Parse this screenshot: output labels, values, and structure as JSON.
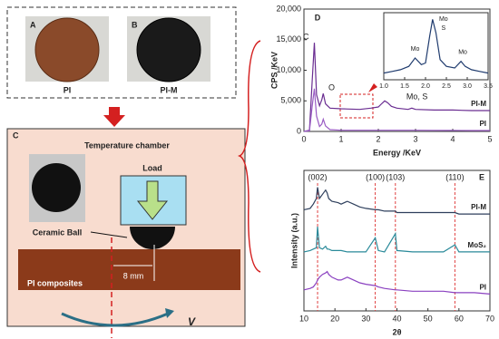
{
  "panels": {
    "a_letter": "A",
    "a_label": "PI",
    "b_letter": "B",
    "b_label": "PI-M",
    "c_letter": "C",
    "chamber": "Temperature chamber",
    "load": "Load",
    "ball": "Ceramic Ball",
    "composite": "PI composites",
    "distance": "8 mm",
    "velocity": "V"
  },
  "chart_data": [
    {
      "type": "line",
      "panel": "D",
      "xlabel": "Energy /KeV",
      "ylabel": "CPS /KeV",
      "xlim": [
        0,
        5
      ],
      "ylim": [
        0,
        20000
      ],
      "xticks": [
        0,
        1,
        2,
        3,
        4,
        5
      ],
      "yticks": [
        0,
        {
          "value": 5000,
          "label": "5,000"
        },
        {
          "value": 10000,
          "label": "10,000"
        },
        {
          "value": 15000,
          "label": "15,000"
        },
        {
          "value": 20000,
          "label": "20,000"
        }
      ],
      "annotations": [
        "C",
        "O",
        "Mo, S"
      ],
      "x": [
        0,
        0.15,
        0.22,
        0.28,
        0.34,
        0.42,
        0.48,
        0.52,
        0.58,
        0.7,
        1.0,
        1.5,
        1.8,
        2.0,
        2.1,
        2.17,
        2.25,
        2.35,
        2.5,
        2.8,
        2.9,
        3.0,
        3.5,
        4.0,
        4.5,
        5.0
      ],
      "series": [
        {
          "name": "PI-M",
          "color": "#6a2d91",
          "values": [
            0,
            200,
            8000,
            14500,
            6000,
            4200,
            5200,
            6200,
            4500,
            3800,
            3700,
            3600,
            3800,
            4000,
            4600,
            5000,
            4700,
            4100,
            3800,
            3600,
            3800,
            3600,
            3500,
            3500,
            3400,
            3400
          ]
        },
        {
          "name": "PI",
          "color": "#9a5cc4",
          "values": [
            0,
            100,
            4000,
            7000,
            2500,
            800,
            1200,
            2000,
            900,
            300,
            200,
            200,
            200,
            200,
            200,
            200,
            200,
            200,
            200,
            200,
            200,
            200,
            180,
            160,
            150,
            150
          ]
        }
      ]
    },
    {
      "type": "line",
      "inset": true,
      "xlim": [
        1.0,
        3.5
      ],
      "ylim": [
        3300,
        5300
      ],
      "xticks": [
        {
          "value": 1,
          "label": "1.0"
        },
        1.5,
        {
          "value": 2,
          "label": "2.0"
        },
        2.5,
        {
          "value": 3,
          "label": "3.0"
        },
        3.5
      ],
      "annotations": [
        "Mo",
        "Mo",
        "S",
        "Mo"
      ],
      "x": [
        1.0,
        1.2,
        1.4,
        1.6,
        1.75,
        1.9,
        2.0,
        2.1,
        2.17,
        2.25,
        2.35,
        2.5,
        2.7,
        2.85,
        2.95,
        3.1,
        3.3,
        3.5
      ],
      "series": [
        {
          "color": "#1f3b6e",
          "values": [
            3500,
            3550,
            3600,
            3700,
            3950,
            3750,
            3800,
            4600,
            5100,
            4700,
            3900,
            3700,
            3650,
            3850,
            3700,
            3600,
            3550,
            3500
          ]
        }
      ]
    },
    {
      "type": "line",
      "panel": "E",
      "xlabel": "2θ",
      "ylabel": "Intensity (a.u.)",
      "xlim": [
        10,
        70
      ],
      "ylim": [
        0,
        100
      ],
      "xticks": [
        10,
        20,
        30,
        40,
        50,
        60,
        70
      ],
      "ref_lines": [
        {
          "value": 14.4,
          "label": "(002)"
        },
        {
          "value": 33,
          "label": "(100)"
        },
        {
          "value": 39.5,
          "label": "(103)"
        },
        {
          "value": 58.7,
          "label": "(110)"
        }
      ],
      "x": [
        10,
        12,
        13,
        14,
        14.4,
        15,
        16,
        17,
        17.5,
        18,
        19,
        21,
        22,
        24,
        26,
        28,
        30,
        33,
        34,
        36,
        39.5,
        40,
        45,
        50,
        55,
        58.7,
        60,
        65,
        70
      ],
      "series": [
        {
          "name": "PI-M",
          "color": "#2e3f5c",
          "values": [
            72,
            73,
            76,
            80,
            88,
            80,
            83,
            86,
            84,
            80,
            78,
            77,
            76,
            78,
            76,
            74,
            73,
            72,
            72,
            71,
            71,
            70,
            70,
            70,
            70,
            70,
            69,
            69,
            69
          ]
        },
        {
          "name": "MoS₂",
          "color": "#2a8a9a",
          "values": [
            42,
            43,
            44,
            45,
            60,
            45,
            44,
            46,
            44,
            44,
            43,
            43,
            43,
            42,
            42,
            42,
            42,
            52,
            43,
            42,
            55,
            43,
            42,
            42,
            42,
            47,
            42,
            42,
            42
          ]
        },
        {
          "name": "PI",
          "color": "#8a40c0",
          "values": [
            15,
            16,
            17,
            20,
            22,
            24,
            26,
            27,
            28,
            26,
            24,
            22,
            22,
            24,
            22,
            20,
            19,
            18,
            17,
            16,
            15,
            15,
            14,
            14,
            14,
            13,
            13,
            13,
            12
          ]
        }
      ]
    }
  ]
}
